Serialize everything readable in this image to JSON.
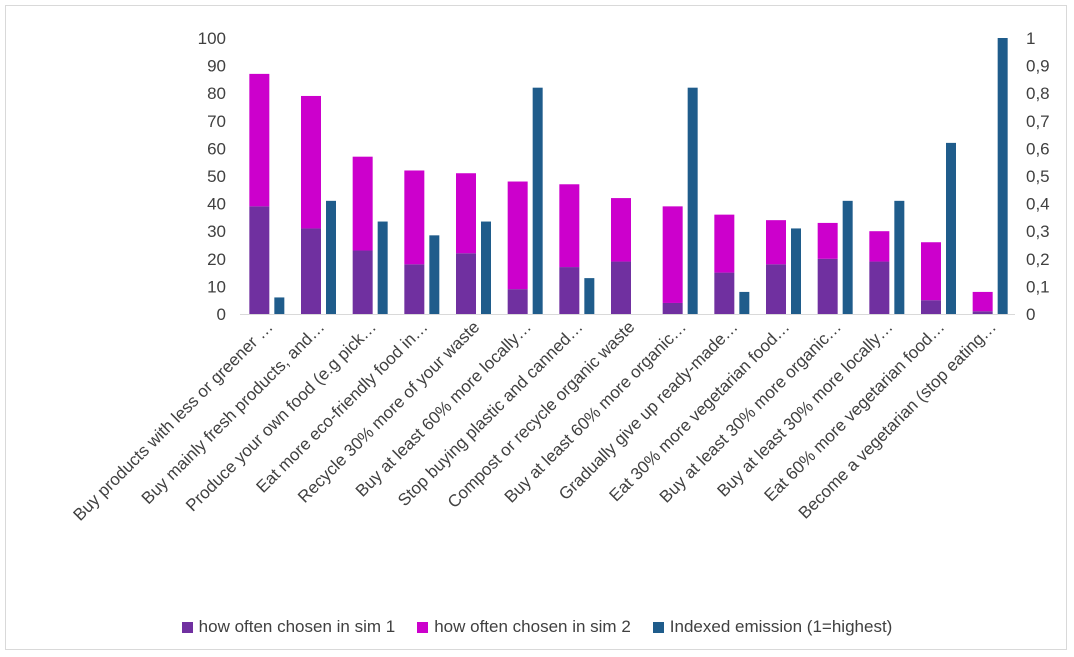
{
  "chart_data": {
    "type": "bar",
    "title": "",
    "xlabel": "",
    "ylabel": "",
    "ylim": [
      0,
      100
    ],
    "y2lim": [
      0,
      1
    ],
    "yticks": [
      "0",
      "10",
      "20",
      "30",
      "40",
      "50",
      "60",
      "70",
      "80",
      "90",
      "100"
    ],
    "y2ticks": [
      "0",
      "0,1",
      "0,2",
      "0,3",
      "0,4",
      "0,5",
      "0,6",
      "0,7",
      "0,8",
      "0,9",
      "1"
    ],
    "grid": false,
    "legend_position": "bottom",
    "categories": [
      "Buy products with less or greener …",
      "Buy mainly fresh products, and…",
      "Produce your own food (e.g pick…",
      "Eat more eco-friendly food in…",
      "Recycle 30% more of your waste",
      "Buy at least 60% more locally…",
      "Stop buying plastic and canned…",
      "Compost or recycle organic waste",
      "Buy at least 60% more organic…",
      "Gradually give up ready-made…",
      "Eat 30% more vegetarian food…",
      "Buy at least 30% more organic…",
      "Buy at least 30% more locally…",
      "Eat 60% more vegetarian food…",
      "Become a vegetarian (stop eating…"
    ],
    "series": [
      {
        "name": "how often chosen in sim 1",
        "color": "#7030a0",
        "axis": "left",
        "stack": "sim",
        "values": [
          39,
          31,
          23,
          18,
          22,
          9,
          17,
          19,
          4,
          15,
          18,
          20,
          19,
          5,
          1
        ]
      },
      {
        "name": "how often chosen in sim 2",
        "color": "#cc00cc",
        "axis": "left",
        "stack": "sim",
        "values": [
          48,
          48,
          34,
          34,
          29,
          39,
          30,
          23,
          35,
          21,
          16,
          13,
          11,
          21,
          7
        ]
      },
      {
        "name": "Indexed emission (1=highest)",
        "color": "#1f5c8b",
        "axis": "right",
        "stack": "emission",
        "values": [
          0.06,
          0.41,
          0.335,
          0.285,
          0.335,
          0.82,
          0.13,
          0.0,
          0.82,
          0.08,
          0.31,
          0.41,
          0.41,
          0.62,
          1.0
        ]
      }
    ]
  }
}
